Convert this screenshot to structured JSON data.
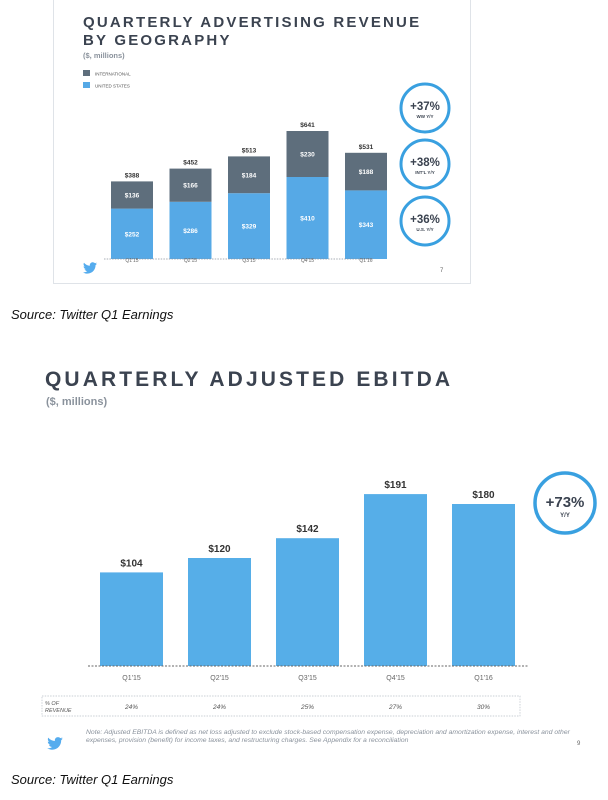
{
  "slide1": {
    "title_line1": "QUARTERLY ADVERTISING REVENUE",
    "title_line2": "BY GEOGRAPHY",
    "unit": "($, millions)",
    "page": "7",
    "callouts": [
      {
        "value": "+37%",
        "label": "WW Y/Y"
      },
      {
        "value": "+38%",
        "label": "INT'L Y/Y"
      },
      {
        "value": "+36%",
        "label": "U.S. Y/Y"
      }
    ]
  },
  "caption1": "Source: Twitter Q1 Earnings",
  "slide2": {
    "title": "QUARTERLY ADJUSTED EBITDA",
    "unit": "($, millions)",
    "callout": {
      "value": "+73%",
      "label": "Y/Y"
    },
    "row_label_1": "% OF",
    "row_label_2": "REVENUE",
    "footnote": "Note: Adjusted EBITDA is defined as net loss adjusted to exclude stock-based compensation expense, depreciation and amortization expense, interest and other expenses, provision (benefit) for income taxes, and restructuring charges. See Appendix for a reconciliation",
    "page": "9"
  },
  "caption2": "Source: Twitter Q1 Earnings",
  "colors": {
    "international": "#5e6e7c",
    "us": "#56a9e6",
    "ebitda": "#56aee8",
    "accent": "#39a0e0"
  },
  "chart_data": [
    {
      "type": "bar",
      "stacked": true,
      "title": "QUARTERLY ADVERTISING REVENUE BY GEOGRAPHY",
      "subtitle": "($, millions)",
      "categories": [
        "Q1'15",
        "Q2'15",
        "Q3'15",
        "Q4'15",
        "Q1'16"
      ],
      "series": [
        {
          "name": "UNITED STATES",
          "values": [
            252,
            286,
            329,
            410,
            343
          ],
          "labels": [
            "$252",
            "$286",
            "$329",
            "$410",
            "$343"
          ]
        },
        {
          "name": "INTERNATIONAL",
          "values": [
            136,
            166,
            184,
            230,
            188
          ],
          "labels": [
            "$136",
            "$166",
            "$184",
            "$230",
            "$188"
          ]
        }
      ],
      "totals": [
        388,
        452,
        513,
        641,
        531
      ],
      "total_labels": [
        "$388",
        "$452",
        "$513",
        "$641",
        "$531"
      ],
      "legend": [
        "INTERNATIONAL",
        "UNITED STATES"
      ],
      "legend_position": "top-left",
      "ylim": [
        0,
        700
      ]
    },
    {
      "type": "bar",
      "title": "QUARTERLY ADJUSTED EBITDA",
      "subtitle": "($, millions)",
      "categories": [
        "Q1'15",
        "Q2'15",
        "Q3'15",
        "Q4'15",
        "Q1'16"
      ],
      "values": [
        104,
        120,
        142,
        191,
        180
      ],
      "labels": [
        "$104",
        "$120",
        "$142",
        "$191",
        "$180"
      ],
      "pct_of_revenue": [
        "24%",
        "24%",
        "25%",
        "27%",
        "30%"
      ],
      "ylim": [
        0,
        205
      ]
    }
  ]
}
